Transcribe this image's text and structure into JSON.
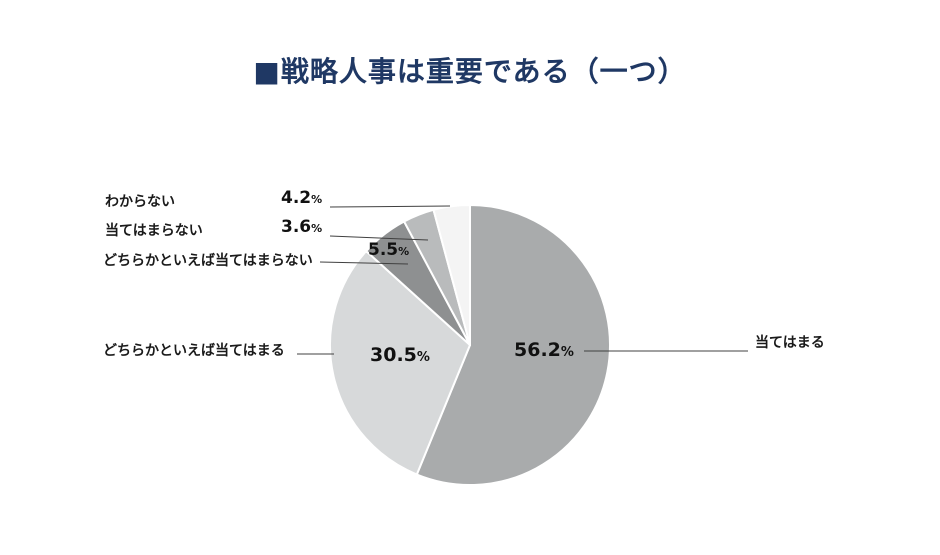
{
  "title": "■戦略人事は重要である（一つ）",
  "chart_data": {
    "type": "pie",
    "title": "■戦略人事は重要である（一つ）",
    "start_angle_deg": -90,
    "direction": "clockwise",
    "legend_position": "callout-labels",
    "total": 100,
    "segments": [
      {
        "label": "当てはまる",
        "value": 56.2,
        "display": "56.2",
        "unit": "%",
        "color": "#a9abac",
        "label_side": "right",
        "value_position": "inside"
      },
      {
        "label": "どちらかといえば当てはまる",
        "value": 30.5,
        "display": "30.5",
        "unit": "%",
        "color": "#d7d9da",
        "label_side": "left",
        "value_position": "inside"
      },
      {
        "label": "どちらかといえば当てはまらない",
        "value": 5.5,
        "display": "5.5",
        "unit": "%",
        "color": "#8e9091",
        "label_side": "left",
        "value_position": "outside"
      },
      {
        "label": "当てはまらない",
        "value": 3.6,
        "display": "3.6",
        "unit": "%",
        "color": "#b9bbbc",
        "label_side": "left",
        "value_position": "outside"
      },
      {
        "label": "わからない",
        "value": 4.2,
        "display": "4.2",
        "unit": "%",
        "color": "#f4f4f4",
        "label_side": "left",
        "value_position": "outside"
      }
    ],
    "colors": {
      "title": "#1f3864",
      "leader_line": "#404040",
      "slice_stroke": "#ffffff"
    }
  }
}
